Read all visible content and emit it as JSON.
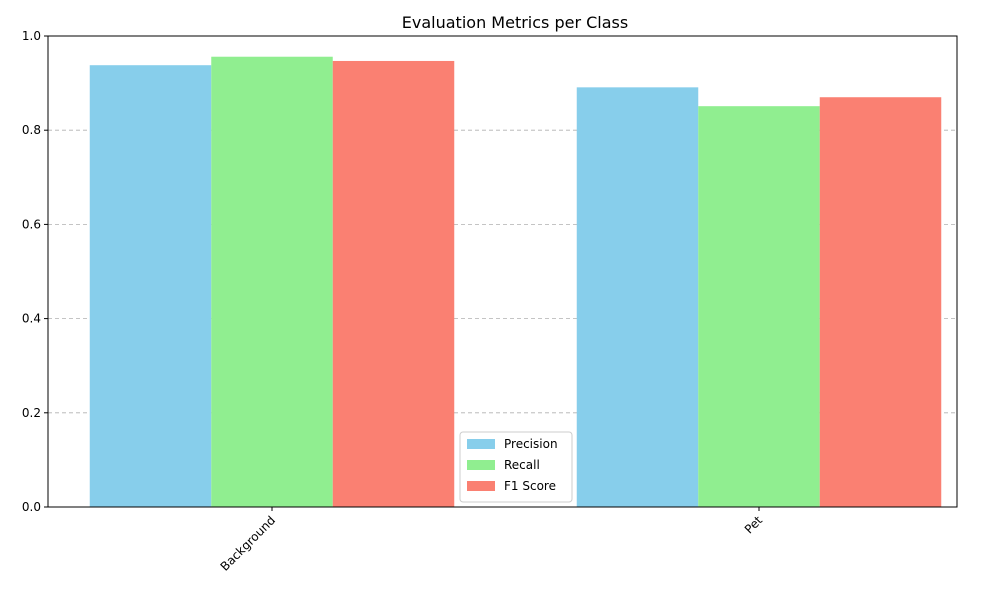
{
  "chart_data": {
    "type": "bar",
    "title": "Evaluation Metrics per Class",
    "xlabel": "",
    "ylabel": "",
    "categories": [
      "Background",
      "Pet"
    ],
    "series": [
      {
        "name": "Precision",
        "values": [
          0.938,
          0.891
        ],
        "color": "#87ceeb"
      },
      {
        "name": "Recall",
        "values": [
          0.956,
          0.851
        ],
        "color": "#90ee90"
      },
      {
        "name": "F1 Score",
        "values": [
          0.947,
          0.87
        ],
        "color": "#fa8072"
      }
    ],
    "ylim": [
      0,
      1.0
    ],
    "yticks": [
      "0.0",
      "0.2",
      "0.4",
      "0.6",
      "0.8",
      "1.0"
    ],
    "ytick_values": [
      0,
      0.2,
      0.4,
      0.6,
      0.8,
      1.0
    ],
    "grid": "y-axis, dashed",
    "legend_position": "bottom-center",
    "xtick_rotation_deg": 45
  }
}
